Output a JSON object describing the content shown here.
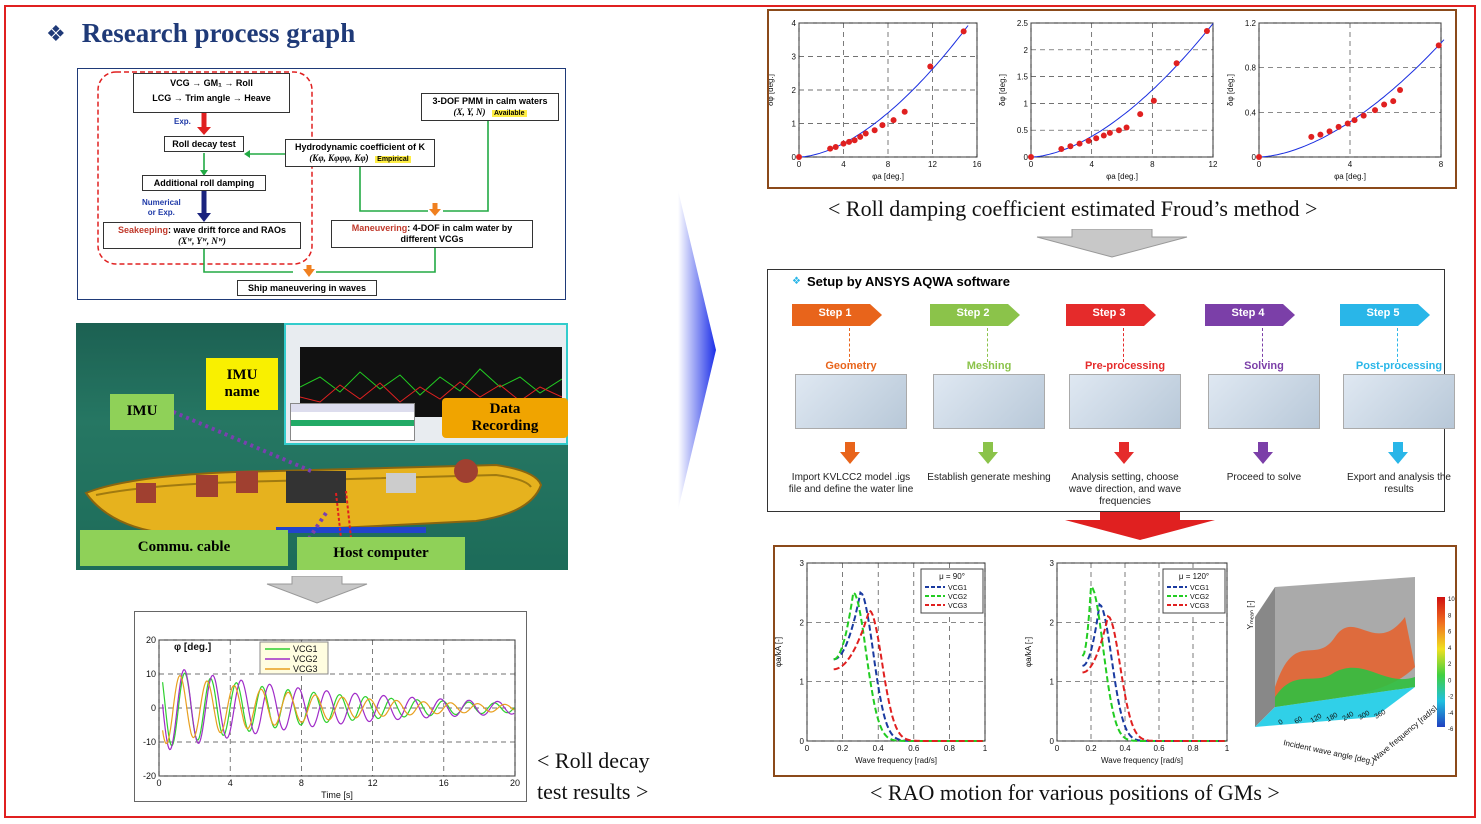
{
  "title": "Research process graph",
  "flowchart": {
    "vcg_line": "VCG → GM₁ → Roll",
    "lcg_line": "LCG → Trim angle → Heave",
    "exp": "Exp.",
    "roll_decay": "Roll decay test",
    "additional_damping": "Additional roll damping",
    "numerical": "Numerical\nor Exp.",
    "seakeeping_label": "Seakeeping",
    "seakeeping_text": ": wave drift force and RAOs",
    "seakeeping_sym": "(Xᵂ, Yᵂ, Nᵂ)",
    "pmm": "3-DOF PMM in calm waters",
    "pmm_sym": "(X, Y, N)",
    "available": "Available",
    "hydro": "Hydrodynamic coefficient of K",
    "hydro_sym": "(Kφ, Kφφφ, Kφ̇)",
    "empirical": "Empirical",
    "maneuvering_label": "Maneuvering",
    "maneuvering_text": ": 4-DOF in calm water by different VCGs",
    "ship_maneuvering": "Ship maneuvering in waves"
  },
  "photo": {
    "imu": "IMU",
    "imu_name": "IMU\nname",
    "data_recording": "Data\nRecording",
    "commu_cable": "Commu. cable",
    "host_computer": "Host computer"
  },
  "roll_decay_chart_caption": "< Roll decay\ntest results >",
  "froude_caption": "< Roll damping coefficient estimated Froud’s method >",
  "aqwa": {
    "title": "Setup by ANSYS AQWA software",
    "steps": [
      {
        "step": "Step 1",
        "name": "Geometry",
        "desc": "Import KVLCC2 model .igs file and define the water line",
        "color": "#e8641b"
      },
      {
        "step": "Step 2",
        "name": "Meshing",
        "desc": "Establish generate meshing",
        "color": "#8bc34a"
      },
      {
        "step": "Step 3",
        "name": "Pre-processing",
        "desc": "Analysis setting, choose wave direction, and wave frequencies",
        "color": "#e52b2b"
      },
      {
        "step": "Step 4",
        "name": "Solving",
        "desc": "Proceed to solve",
        "color": "#7b3fa8"
      },
      {
        "step": "Step 5",
        "name": "Post-processing",
        "desc": "Export and analysis the results",
        "color": "#29b6e8"
      }
    ]
  },
  "rao_caption": "< RAO motion for various positions of GMs >",
  "chart_data": [
    {
      "type": "line",
      "title": "",
      "xlabel": "Time [s]",
      "ylabel": "φ [deg.]",
      "xlim": [
        0,
        20
      ],
      "ylim": [
        -20,
        20
      ],
      "x_ticks": [
        0,
        4,
        8,
        12,
        16,
        20
      ],
      "y_ticks": [
        -20,
        -10,
        0,
        10,
        20
      ],
      "series": [
        {
          "name": "VCG1",
          "color": "#2fd02f",
          "amplitude": 12,
          "period": 1.45,
          "decay": 0.11
        },
        {
          "name": "VCG2",
          "color": "#a02cc8",
          "amplitude": 13,
          "period": 1.6,
          "decay": 0.1
        },
        {
          "name": "VCG3",
          "color": "#e8a020",
          "amplitude": 11,
          "period": 1.52,
          "decay": 0.12
        }
      ]
    },
    {
      "type": "scatter",
      "xlabel": "φa [deg.]",
      "ylabel": "δφ [deg.]",
      "xlim": [
        0,
        16
      ],
      "ylim": [
        0,
        4
      ],
      "x_ticks": [
        0,
        4,
        8,
        12,
        16
      ],
      "y_ticks": [
        0,
        1,
        2,
        3,
        4
      ],
      "points": [
        [
          0,
          0
        ],
        [
          2.8,
          0.25
        ],
        [
          3.3,
          0.3
        ],
        [
          4,
          0.4
        ],
        [
          4.5,
          0.45
        ],
        [
          5,
          0.5
        ],
        [
          5.5,
          0.6
        ],
        [
          6,
          0.7
        ],
        [
          6.8,
          0.8
        ],
        [
          7.5,
          0.95
        ],
        [
          8.5,
          1.1
        ],
        [
          9.5,
          1.35
        ],
        [
          11.8,
          2.7
        ],
        [
          14.8,
          3.75
        ]
      ]
    },
    {
      "type": "scatter",
      "xlabel": "φa [deg.]",
      "ylabel": "δφ [deg.]",
      "xlim": [
        0,
        12
      ],
      "ylim": [
        0,
        2.5
      ],
      "x_ticks": [
        0,
        4,
        8,
        12
      ],
      "y_ticks": [
        0,
        0.5,
        1,
        1.5,
        2,
        2.5
      ],
      "points": [
        [
          0,
          0
        ],
        [
          2,
          0.15
        ],
        [
          2.6,
          0.2
        ],
        [
          3.2,
          0.25
        ],
        [
          3.8,
          0.3
        ],
        [
          4.3,
          0.35
        ],
        [
          4.8,
          0.4
        ],
        [
          5.2,
          0.45
        ],
        [
          5.8,
          0.5
        ],
        [
          6.3,
          0.55
        ],
        [
          7.2,
          0.8
        ],
        [
          8.1,
          1.05
        ],
        [
          9.6,
          1.75
        ],
        [
          11.6,
          2.35
        ]
      ]
    },
    {
      "type": "scatter",
      "xlabel": "φa [deg.]",
      "ylabel": "δφ [deg.]",
      "xlim": [
        0,
        8
      ],
      "ylim": [
        0,
        1.2
      ],
      "x_ticks": [
        0,
        4,
        8
      ],
      "y_ticks": [
        0,
        0.4,
        0.8,
        1.2
      ],
      "points": [
        [
          0,
          0
        ],
        [
          2.3,
          0.18
        ],
        [
          2.7,
          0.2
        ],
        [
          3.1,
          0.23
        ],
        [
          3.5,
          0.27
        ],
        [
          3.9,
          0.3
        ],
        [
          4.2,
          0.33
        ],
        [
          4.6,
          0.37
        ],
        [
          5.1,
          0.42
        ],
        [
          5.5,
          0.47
        ],
        [
          5.9,
          0.5
        ],
        [
          6.2,
          0.6
        ],
        [
          7.9,
          1.0
        ]
      ]
    },
    {
      "type": "line",
      "title": "μ = 90°",
      "xlabel": "Wave frequency [rad/s]",
      "ylabel": "φa/kA [-]",
      "xlim": [
        0,
        1
      ],
      "ylim": [
        0,
        3
      ],
      "x_ticks": [
        0,
        0.2,
        0.4,
        0.6,
        0.8,
        1
      ],
      "y_ticks": [
        0,
        1,
        2,
        3
      ],
      "series": [
        {
          "name": "VCG1",
          "color": "#1a3aa0",
          "dash": "6,3",
          "peak_x": 0.3,
          "peak_y": 2.5
        },
        {
          "name": "VCG2",
          "color": "#22cc22",
          "dash": "6,3",
          "peak_x": 0.26,
          "peak_y": 2.5
        },
        {
          "name": "VCG3",
          "color": "#e02020",
          "dash": "6,3",
          "peak_x": 0.35,
          "peak_y": 2.2
        }
      ]
    },
    {
      "type": "line",
      "title": "μ = 120°",
      "xlabel": "Wave frequency [rad/s]",
      "ylabel": "φa/kA [-]",
      "xlim": [
        0,
        1
      ],
      "ylim": [
        0,
        3
      ],
      "x_ticks": [
        0,
        0.2,
        0.4,
        0.6,
        0.8,
        1
      ],
      "y_ticks": [
        0,
        1,
        2,
        3
      ],
      "series": [
        {
          "name": "VCG1",
          "color": "#1a3aa0",
          "dash": "6,3",
          "peak_x": 0.25,
          "peak_y": 2.3
        },
        {
          "name": "VCG2",
          "color": "#22cc22",
          "dash": "6,3",
          "peak_x": 0.2,
          "peak_y": 2.6
        },
        {
          "name": "VCG3",
          "color": "#e02020",
          "dash": "6,3",
          "peak_x": 0.3,
          "peak_y": 2.1
        }
      ]
    },
    {
      "type": "heatmap",
      "zlabel": "Yₘₑₐₙ [-]",
      "xlabel": "Incident wave angle [deg.]",
      "ylabel": "Wave frequency [rad/s]",
      "x_ticks": [
        0,
        60,
        120,
        180,
        240,
        300,
        360
      ],
      "colorbar_ticks": [
        10,
        8,
        6,
        4,
        2,
        0,
        -2,
        -4,
        -6
      ]
    }
  ]
}
